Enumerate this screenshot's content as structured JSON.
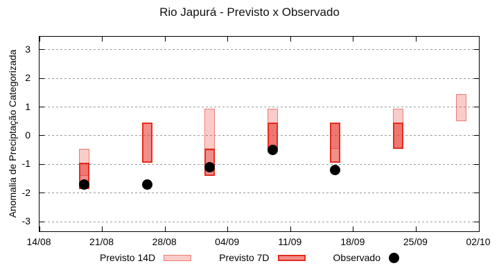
{
  "title": "Rio Japurá - Previsto x Observado",
  "axes": {
    "y_label": "Anomalia de Preciptação Categorizada",
    "y_ticks": [
      3,
      2,
      1,
      0,
      -1,
      -2,
      -3
    ],
    "x_ticks": [
      "14/08",
      "21/08",
      "28/08",
      "04/09",
      "11/09",
      "18/09",
      "25/09",
      "02/10"
    ]
  },
  "legend": [
    {
      "label": "Previsto 14D",
      "swatch": "box-light"
    },
    {
      "label": "Previsto 7D",
      "swatch": "box-dark"
    },
    {
      "label": "Observado",
      "swatch": "dot"
    }
  ],
  "colors": {
    "previsto_14d_fill": "rgba(230,50,40,0.25)",
    "previsto_14d_border": "rgba(232,80,66,0.65)",
    "previsto_7d_fill": "rgba(230,50,40,0.55)",
    "previsto_7d_border": "#e62b1e",
    "observado": "#000000",
    "grid": "#999999",
    "axis": "#000000"
  },
  "chart_data": {
    "type": "bar",
    "subtype": "range-bars-with-scatter",
    "title": "Rio Japurá - Previsto x Observado",
    "xlabel": "",
    "ylabel": "Anomalia de Preciptação Categorizada",
    "ylim": [
      -3.33,
      3.45
    ],
    "xlim_days": [
      0,
      49
    ],
    "grid": "horizontal-dotted",
    "legend_position": "bottom",
    "x_tick_days": [
      0,
      7,
      14,
      21,
      28,
      35,
      42,
      49
    ],
    "groups": [
      {
        "date": "19/08",
        "day": 5,
        "previsto_14d": [
          -0.45,
          -1.4
        ],
        "previsto_7d": [
          -0.95,
          -1.85
        ],
        "observado": -1.7
      },
      {
        "date": "26/08",
        "day": 12,
        "previsto_14d": null,
        "previsto_7d": [
          0.45,
          -0.95
        ],
        "observado": -1.7
      },
      {
        "date": "02/09",
        "day": 19,
        "previsto_14d": [
          0.95,
          -0.45
        ],
        "previsto_7d": [
          -0.45,
          -1.4
        ],
        "observado": -1.1
      },
      {
        "date": "09/09",
        "day": 26,
        "previsto_14d": [
          0.95,
          -0.45
        ],
        "previsto_7d": [
          0.45,
          -0.45
        ],
        "observado": -0.5
      },
      {
        "date": "16/09",
        "day": 33,
        "previsto_14d": [
          0.45,
          -0.45
        ],
        "previsto_7d": [
          0.45,
          -0.95
        ],
        "observado": -1.2
      },
      {
        "date": "23/09",
        "day": 40,
        "previsto_14d": [
          0.95,
          -0.45
        ],
        "previsto_7d": [
          0.45,
          -0.45
        ],
        "observado": null
      },
      {
        "date": "30/09",
        "day": 47,
        "previsto_14d": [
          1.45,
          0.5
        ],
        "previsto_7d": null,
        "observado": null
      }
    ]
  }
}
